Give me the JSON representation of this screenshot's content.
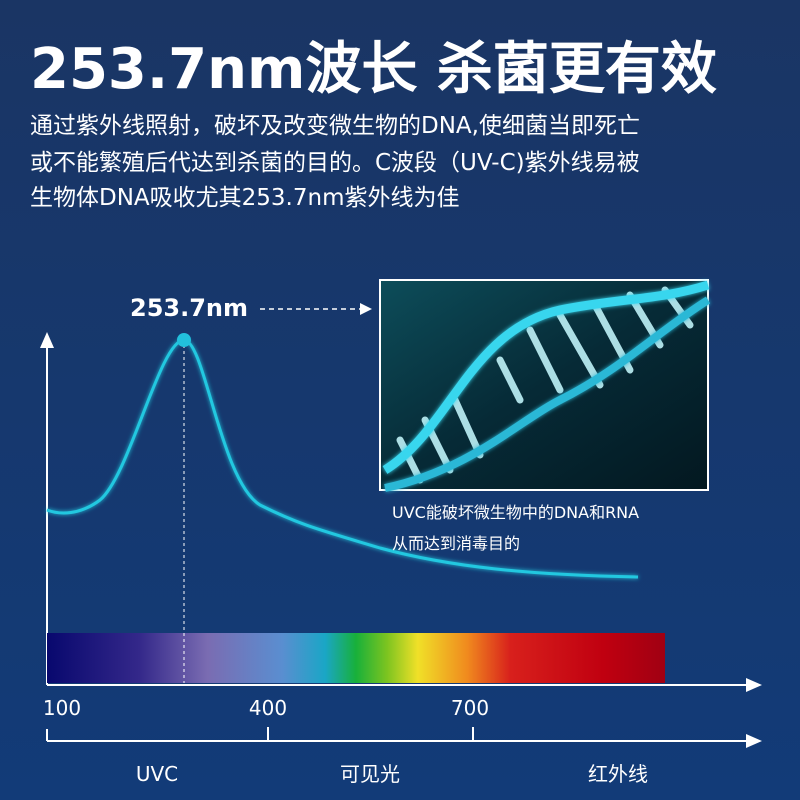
{
  "header": {
    "title": "253.7nm波长 杀菌更有效",
    "description": [
      "通过紫外线照射，破坏及改变微生物的DNA,使细菌当即死亡",
      "或不能繁殖后代达到杀菌的目的。C波段（UV-C)紫外线易被",
      "生物体DNA吸收尤其253.7nm紫外线为佳"
    ]
  },
  "diagram": {
    "peak_label": "253.7nm",
    "caption": [
      "UVC能破坏微生物中的DNA和RNA",
      "从而达到消毒目的"
    ],
    "axis_ticks": [
      100,
      400,
      700
    ],
    "bands": [
      "UVC",
      "可见光",
      "红外线"
    ]
  }
}
